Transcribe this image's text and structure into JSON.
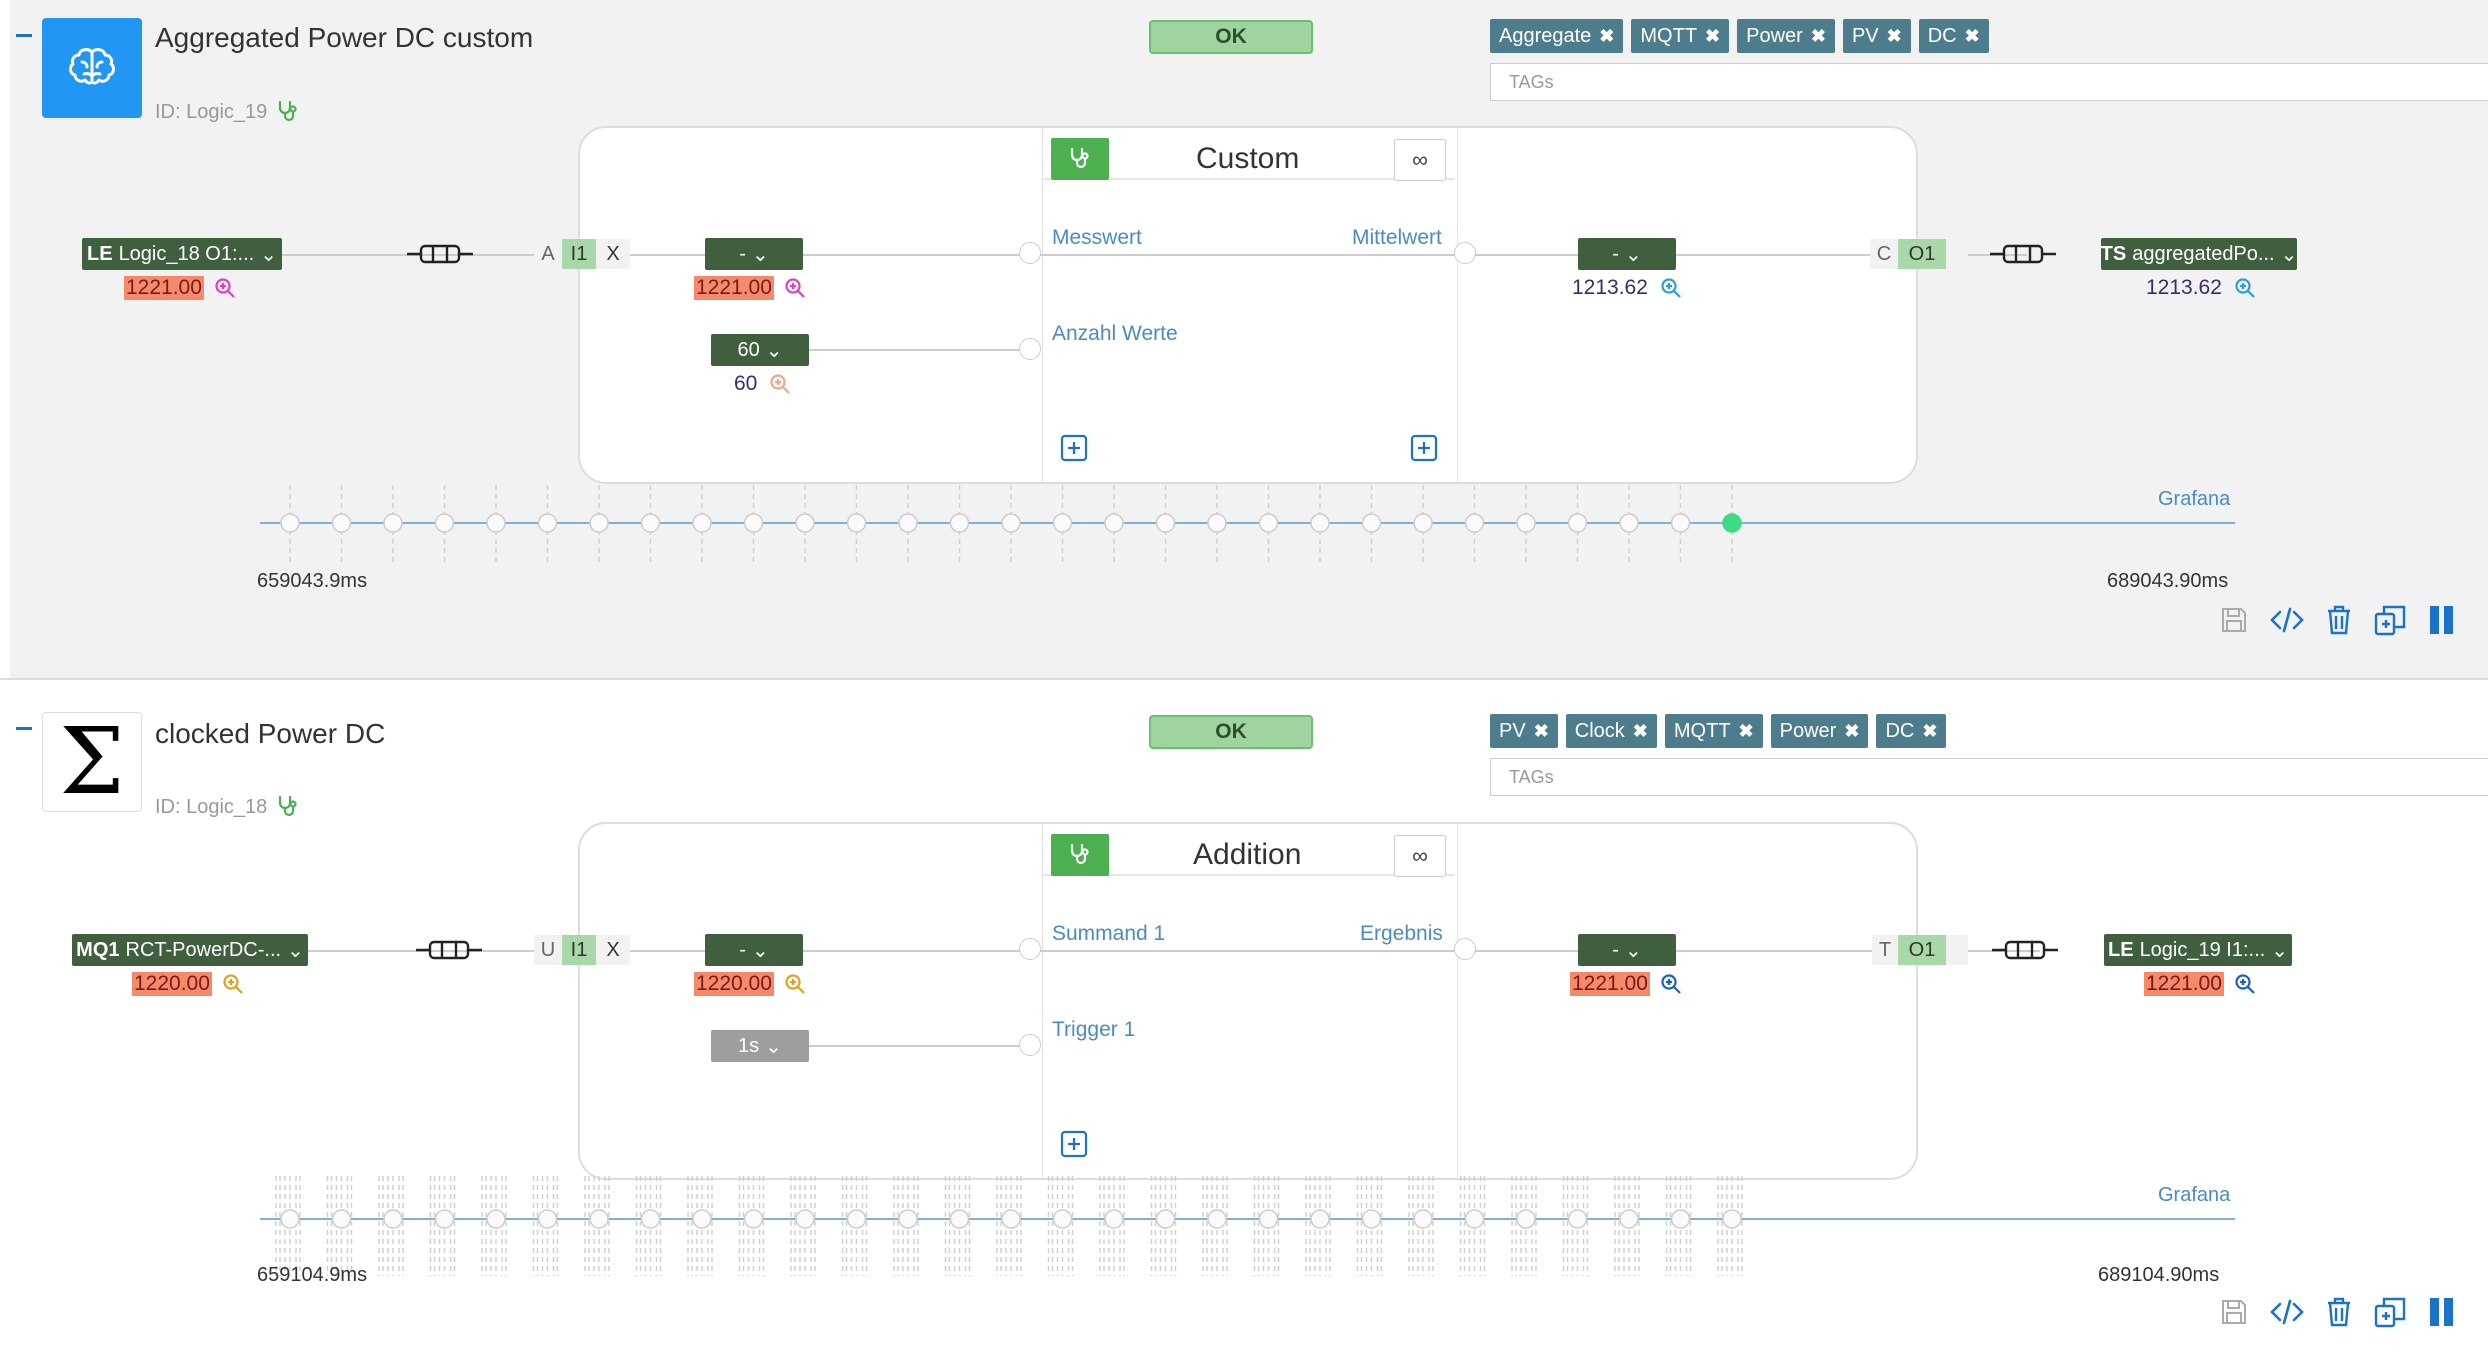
{
  "blocks": [
    {
      "title": "Aggregated Power DC custom",
      "id_label": "ID: Logic_19",
      "status": "OK",
      "tags": [
        "Aggregate",
        "MQTT",
        "Power",
        "PV",
        "DC"
      ],
      "tags_placeholder": "TAGs",
      "icon": "brain-icon",
      "block_name": "Custom",
      "input_source": {
        "prefix": "LE",
        "label": "Logic_18 O1:..."
      },
      "input_source_value": "1221.00",
      "input_io": {
        "left": "A",
        "mid": "I1",
        "right": "X"
      },
      "inputs": [
        {
          "dropdown": "-",
          "value": "1221.00",
          "port_label": "Messwert"
        },
        {
          "dropdown": "60",
          "value": "60",
          "port_label": "Anzahl Werte"
        }
      ],
      "output_label": "Mittelwert",
      "output_dropdown": "-",
      "output_value": "1213.62",
      "output_io": {
        "left": "C",
        "mid": "O1"
      },
      "output_target": {
        "prefix": "TS",
        "label": "aggregatedPo..."
      },
      "output_target_value": "1213.62",
      "timeline": {
        "start": "659043.9ms",
        "end": "689043.90ms",
        "link": "Grafana"
      }
    },
    {
      "title": "clocked Power DC",
      "id_label": "ID: Logic_18",
      "status": "OK",
      "tags": [
        "PV",
        "Clock",
        "MQTT",
        "Power",
        "DC"
      ],
      "tags_placeholder": "TAGs",
      "icon": "sigma-icon",
      "block_name": "Addition",
      "input_source": {
        "prefix": "MQ1",
        "label": "RCT-PowerDC-..."
      },
      "input_source_value": "1220.00",
      "input_io": {
        "left": "U",
        "mid": "I1",
        "right": "X"
      },
      "inputs": [
        {
          "dropdown": "-",
          "value": "1220.00",
          "port_label": "Summand 1"
        },
        {
          "dropdown": "1s",
          "value": "",
          "port_label": "Trigger 1"
        }
      ],
      "output_label": "Ergebnis",
      "output_dropdown": "-",
      "output_value": "1221.00",
      "output_io": {
        "left": "T",
        "mid": "O1"
      },
      "output_target": {
        "prefix": "LE",
        "label": "Logic_19 I1:..."
      },
      "output_target_value": "1221.00",
      "timeline": {
        "start": "659104.9ms",
        "end": "689104.90ms",
        "link": "Grafana"
      }
    }
  ],
  "colors": {
    "ok_bg": "#9fd3a0",
    "tag_bg": "#4d7d8d",
    "dropdown_bg": "#3f5f3f",
    "highlight_value": "#f48a6a",
    "link_blue": "#4a8bc2",
    "accent_blue": "#1a73c8",
    "active_dot": "#3ddc84"
  }
}
